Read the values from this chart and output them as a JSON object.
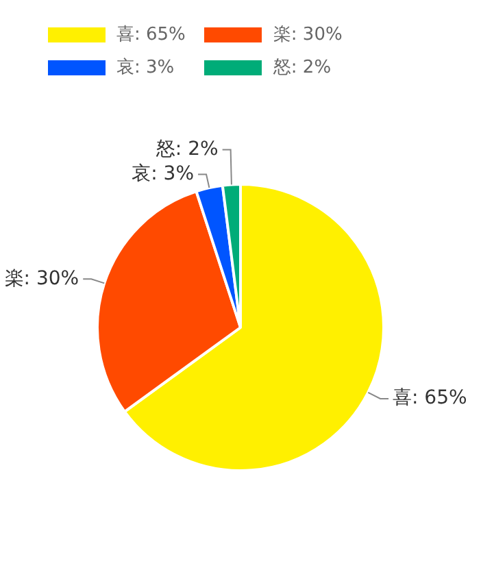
{
  "chart_data": {
    "type": "pie",
    "categories": [
      "喜: 65%",
      "楽: 30%",
      "哀: 3%",
      "怒: 2%"
    ],
    "values": [
      65,
      30,
      3,
      2
    ],
    "colors": [
      "#fff000",
      "#ff4a00",
      "#0055ff",
      "#00ac78"
    ],
    "legend": "top left"
  }
}
